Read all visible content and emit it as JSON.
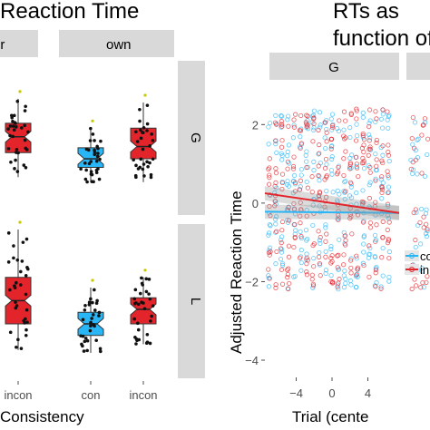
{
  "chart_data": [
    {
      "type": "boxplot",
      "title": "Reaction Time",
      "facet_columns": [
        "er",
        "own"
      ],
      "facet_rows": [
        "G",
        "L"
      ],
      "categories": [
        "con",
        "incon"
      ],
      "xlabel": "Consistency",
      "x_tick_labels": [
        "incon",
        "con",
        "incon"
      ],
      "colors": {
        "con": "#29b6f6",
        "incon": "#e3242b"
      },
      "panels": [
        {
          "col": "er",
          "row": "G",
          "boxes": [
            {
              "group": "incon",
              "q1": 0.42,
              "median": 0.55,
              "q3": 0.66,
              "whisker_low": 0.22,
              "whisker_high": 0.86
            }
          ]
        },
        {
          "col": "own",
          "row": "G",
          "boxes": [
            {
              "group": "con",
              "q1": 0.3,
              "median": 0.37,
              "q3": 0.46,
              "whisker_low": 0.18,
              "whisker_high": 0.62
            },
            {
              "group": "incon",
              "q1": 0.37,
              "median": 0.47,
              "q3": 0.62,
              "whisker_low": 0.18,
              "whisker_high": 0.83
            }
          ]
        },
        {
          "col": "er",
          "row": "L",
          "boxes": [
            {
              "group": "incon",
              "q1": 0.3,
              "median": 0.46,
              "q3": 0.62,
              "whisker_low": 0.12,
              "whisker_high": 0.95
            }
          ]
        },
        {
          "col": "own",
          "row": "L",
          "boxes": [
            {
              "group": "con",
              "q1": 0.22,
              "median": 0.3,
              "q3": 0.38,
              "whisker_low": 0.1,
              "whisker_high": 0.55
            },
            {
              "group": "incon",
              "q1": 0.3,
              "median": 0.4,
              "q3": 0.48,
              "whisker_low": 0.16,
              "whisker_high": 0.62
            }
          ]
        }
      ]
    },
    {
      "type": "scatter",
      "title": "RTs as a function of",
      "title_lines": [
        "RTs as",
        "function of"
      ],
      "facet_columns": [
        "G"
      ],
      "xlabel": "Trial (cente",
      "ylabel": "Adjusted Reaction Time",
      "x_ticks": [
        -4,
        0,
        4
      ],
      "y_ticks": [
        -4,
        -2,
        0,
        2
      ],
      "xlim": [
        -7.5,
        7.5
      ],
      "ylim": [
        -4.3,
        2.4
      ],
      "legend": [
        "co",
        "in"
      ],
      "legend_position": "right",
      "series": [
        {
          "name": "con",
          "color": "#29b6f6",
          "fit_start": [
            -7.5,
            -0.22
          ],
          "fit_end": [
            7.5,
            -0.25
          ]
        },
        {
          "name": "incon",
          "color": "#e3242b",
          "fit_start": [
            -7.5,
            0.25
          ],
          "fit_end": [
            7.5,
            -0.25
          ]
        }
      ]
    }
  ]
}
